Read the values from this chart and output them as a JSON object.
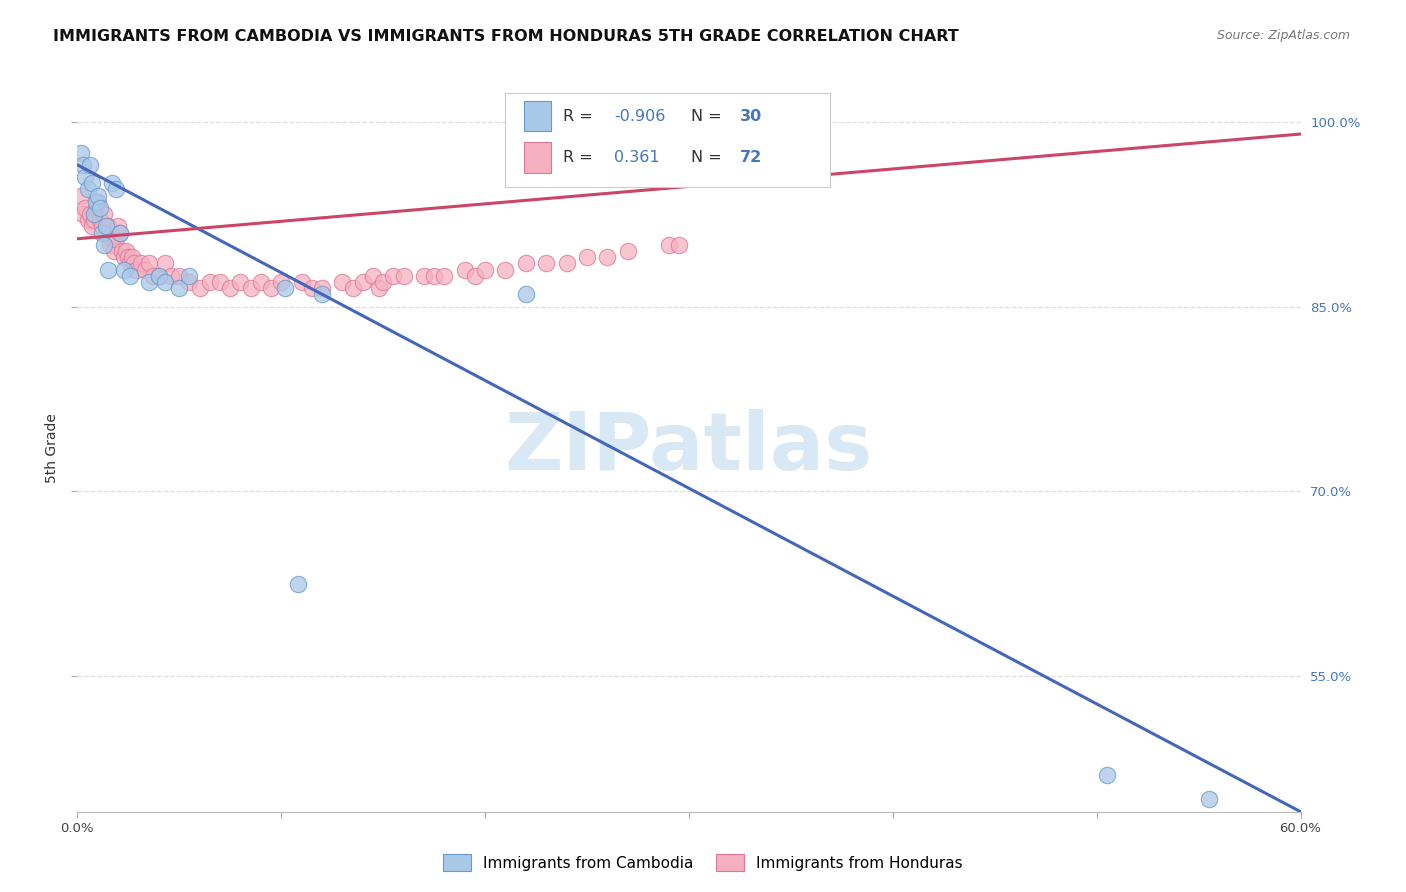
{
  "title": "IMMIGRANTS FROM CAMBODIA VS IMMIGRANTS FROM HONDURAS 5TH GRADE CORRELATION CHART",
  "source": "Source: ZipAtlas.com",
  "ylabel": "5th Grade",
  "xlim": [
    0.0,
    60.0
  ],
  "ylim": [
    44.0,
    103.0
  ],
  "yticks": [
    55.0,
    70.0,
    85.0,
    100.0
  ],
  "ytick_labels": [
    "55.0%",
    "70.0%",
    "85.0%",
    "100.0%"
  ],
  "xtick_positions": [
    0.0,
    10.0,
    20.0,
    30.0,
    40.0,
    50.0,
    60.0
  ],
  "xtick_labels": [
    "0.0%",
    "",
    "",
    "",
    "",
    "",
    "60.0%"
  ],
  "background_color": "#ffffff",
  "grid_color": "#dedede",
  "cambodia_color": "#a8c8e8",
  "cambodia_edge_color": "#6699cc",
  "honduras_color": "#f5b0c0",
  "honduras_edge_color": "#dd7799",
  "cambodia_line_color": "#4466bb",
  "honduras_line_color": "#cc4466",
  "legend_R_cambodia": "-0.906",
  "legend_N_cambodia": "30",
  "legend_R_honduras": "0.361",
  "legend_N_honduras": "72",
  "title_fontsize": 11.5,
  "source_fontsize": 9,
  "axis_label_fontsize": 10,
  "tick_fontsize": 9.5,
  "watermark_text": "ZIPatlas",
  "watermark_color": "#d8e8f5",
  "cambodia_x": [
    0.2,
    0.3,
    0.4,
    0.5,
    0.6,
    0.7,
    0.8,
    0.9,
    1.0,
    1.1,
    1.2,
    1.3,
    1.4,
    1.5,
    1.7,
    1.9,
    2.1,
    2.3,
    2.6,
    3.5,
    4.0,
    4.3,
    5.0,
    5.5,
    10.2,
    10.8,
    12.0,
    22.0,
    50.5,
    55.5
  ],
  "cambodia_y": [
    97.5,
    96.5,
    95.5,
    94.5,
    96.5,
    95.0,
    92.5,
    93.5,
    94.0,
    93.0,
    91.0,
    90.0,
    91.5,
    88.0,
    95.0,
    94.5,
    91.0,
    88.0,
    87.5,
    87.0,
    87.5,
    87.0,
    86.5,
    87.5,
    86.5,
    62.5,
    86.0,
    86.0,
    47.0,
    45.0
  ],
  "honduras_x": [
    0.2,
    0.3,
    0.4,
    0.5,
    0.6,
    0.7,
    0.8,
    0.9,
    1.0,
    1.1,
    1.2,
    1.3,
    1.4,
    1.5,
    1.6,
    1.7,
    1.8,
    1.9,
    2.0,
    2.1,
    2.2,
    2.3,
    2.4,
    2.5,
    2.6,
    2.7,
    2.8,
    2.9,
    3.1,
    3.3,
    3.5,
    3.7,
    4.0,
    4.3,
    4.6,
    5.0,
    5.5,
    6.0,
    6.5,
    7.0,
    7.5,
    8.0,
    8.5,
    9.0,
    9.5,
    10.0,
    11.0,
    11.5,
    12.0,
    13.0,
    13.5,
    14.0,
    14.5,
    14.8,
    15.0,
    15.5,
    16.0,
    17.0,
    17.5,
    18.0,
    19.0,
    19.5,
    20.0,
    21.0,
    22.0,
    23.0,
    24.0,
    25.0,
    26.0,
    27.0,
    29.0,
    29.5
  ],
  "honduras_y": [
    94.0,
    92.5,
    93.0,
    92.0,
    92.5,
    91.5,
    92.0,
    93.0,
    93.5,
    92.0,
    91.5,
    92.5,
    91.0,
    91.5,
    90.0,
    90.5,
    89.5,
    90.5,
    91.5,
    91.0,
    89.5,
    89.0,
    89.5,
    89.0,
    88.5,
    89.0,
    88.5,
    88.0,
    88.5,
    88.0,
    88.5,
    87.5,
    87.5,
    88.5,
    87.5,
    87.5,
    87.0,
    86.5,
    87.0,
    87.0,
    86.5,
    87.0,
    86.5,
    87.0,
    86.5,
    87.0,
    87.0,
    86.5,
    86.5,
    87.0,
    86.5,
    87.0,
    87.5,
    86.5,
    87.0,
    87.5,
    87.5,
    87.5,
    87.5,
    87.5,
    88.0,
    87.5,
    88.0,
    88.0,
    88.5,
    88.5,
    88.5,
    89.0,
    89.0,
    89.5,
    90.0,
    90.0
  ],
  "camb_line_x0": 0.0,
  "camb_line_y0": 96.5,
  "camb_line_x1": 60.0,
  "camb_line_y1": 44.0,
  "hond_line_x0": 0.0,
  "hond_line_y0": 90.5,
  "hond_line_x1": 60.0,
  "hond_line_y1": 99.0
}
